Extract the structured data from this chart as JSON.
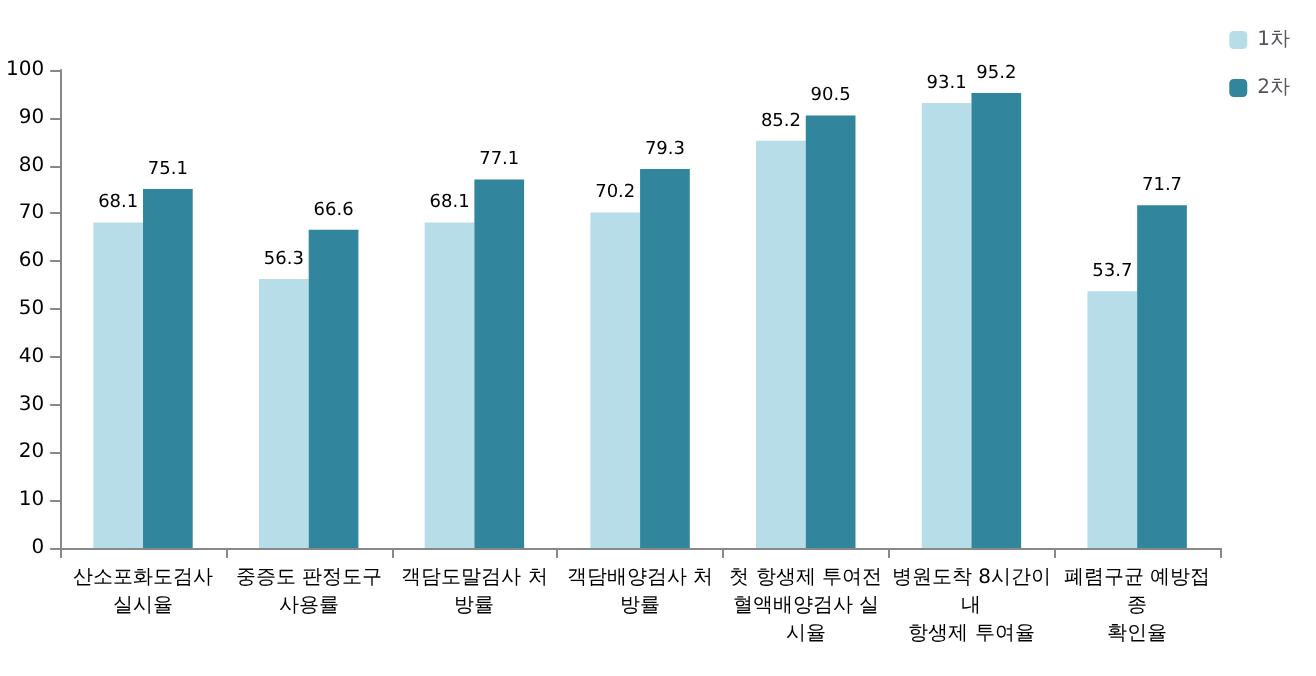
{
  "chart_data": {
    "type": "bar",
    "categories": [
      "산소포화도검사\n실시율",
      "중증도 판정도구\n사용률",
      "객담도말검사 처방률",
      "객담배양검사 처방률",
      "첫 항생제 투여전\n혈액배양검사 실시율",
      "병원도착 8시간이내\n항생제 투여율",
      "폐렴구균 예방접종\n확인율"
    ],
    "series": [
      {
        "name": "1차",
        "color": "#b7dde8",
        "values": [
          68.1,
          56.3,
          68.1,
          70.2,
          85.2,
          93.1,
          53.7
        ]
      },
      {
        "name": "2차",
        "color": "#31859c",
        "values": [
          75.1,
          66.6,
          77.1,
          79.3,
          90.5,
          95.2,
          71.7
        ]
      }
    ],
    "ylim": [
      0,
      100
    ],
    "yticks": [
      0,
      10,
      20,
      30,
      40,
      50,
      60,
      70,
      80,
      90,
      100
    ],
    "data_labels": true,
    "grid": false,
    "legend": "top right"
  }
}
